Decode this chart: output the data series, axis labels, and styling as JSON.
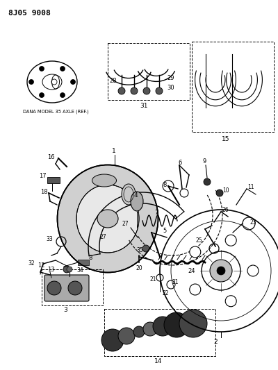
{
  "title": "8J05 9008",
  "bg": "#ffffff",
  "fg": "#000000",
  "fig_w": 4.0,
  "fig_h": 5.33,
  "dpi": 100
}
